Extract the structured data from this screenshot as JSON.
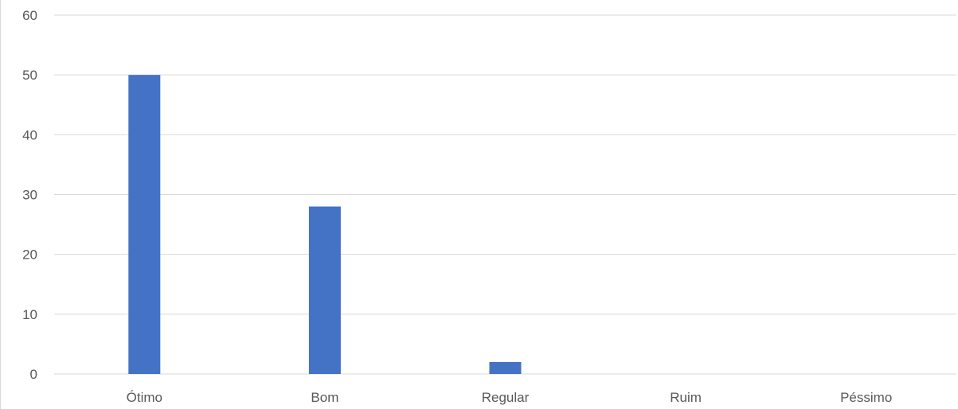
{
  "chart_data": {
    "type": "bar",
    "title": "",
    "xlabel": "",
    "ylabel": "",
    "categories": [
      "Ótimo",
      "Bom",
      "Regular",
      "Ruim",
      "Péssimo"
    ],
    "values": [
      50,
      28,
      2,
      0,
      0
    ],
    "ylim": [
      0,
      60
    ],
    "yticks": [
      "0",
      "10",
      "20",
      "30",
      "40",
      "50",
      "60"
    ],
    "grid": true,
    "legend": "none",
    "colors": {
      "bar": "#4472c4",
      "grid": "#d9d9d9",
      "text": "#595959"
    }
  }
}
